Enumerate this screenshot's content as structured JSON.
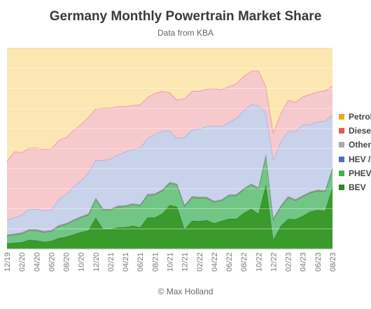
{
  "header": {
    "title": "Germany Monthly Powertrain Market Share",
    "subtitle": "Data from KBA"
  },
  "footer": {
    "credit": "© Max Holland"
  },
  "chart_data": {
    "type": "area",
    "stacked": true,
    "ylim": [
      0,
      100
    ],
    "grid": true,
    "legend_position": "right",
    "x": [
      "12/19",
      "01/20",
      "02/20",
      "03/20",
      "04/20",
      "05/20",
      "06/20",
      "07/20",
      "08/20",
      "09/20",
      "10/20",
      "11/20",
      "12/20",
      "01/21",
      "02/21",
      "03/21",
      "04/21",
      "05/21",
      "06/21",
      "07/21",
      "08/21",
      "09/21",
      "10/21",
      "11/21",
      "12/21",
      "01/22",
      "02/22",
      "03/22",
      "04/22",
      "05/22",
      "06/22",
      "07/22",
      "08/22",
      "09/22",
      "10/22",
      "11/22",
      "12/22",
      "01/23",
      "02/23",
      "03/23",
      "04/23",
      "05/23",
      "06/23",
      "07/23",
      "08/23"
    ],
    "xtick_labels": [
      "12/19",
      "02/20",
      "04/20",
      "06/20",
      "08/20",
      "10/20",
      "12/20",
      "02/21",
      "04/21",
      "06/21",
      "08/21",
      "10/21",
      "12/21",
      "02/22",
      "04/22",
      "06/22",
      "08/22",
      "10/22",
      "12/22",
      "02/23",
      "04/23",
      "06/23",
      "08/23"
    ],
    "series": [
      {
        "name": "BEV",
        "color": "#3a9a2c",
        "values": [
          2.7,
          3.0,
          3.3,
          4.5,
          4.2,
          3.5,
          3.9,
          5.4,
          6.0,
          7.2,
          8.4,
          9.1,
          15.6,
          9.8,
          9.7,
          10.7,
          10.8,
          11.5,
          10.7,
          15.6,
          15.7,
          17.6,
          21.8,
          21.0,
          9.7,
          14.0,
          13.8,
          14.3,
          12.7,
          14.0,
          15.0,
          15.0,
          17.8,
          20.0,
          17.4,
          32.2,
          4.4,
          11.5,
          14.9,
          14.7,
          16.4,
          18.6,
          19.4,
          19.0,
          30.8
        ]
      },
      {
        "name": "PHEV",
        "color": "#72c685",
        "values": [
          3.8,
          4.0,
          4.3,
          4.7,
          4.9,
          4.8,
          4.8,
          5.8,
          6.2,
          6.8,
          7.2,
          7.8,
          9.2,
          9.6,
          9.6,
          10.2,
          10.3,
          10.6,
          10.8,
          11.1,
          11.3,
          11.4,
          10.9,
          10.8,
          11.5,
          11.6,
          11.5,
          11.0,
          10.6,
          10.0,
          11.5,
          11.6,
          11.8,
          11.9,
          12.6,
          14.5,
          10.3,
          9.4,
          10.7,
          9.4,
          9.7,
          9.3,
          9.5,
          9.5,
          9.1
        ]
      },
      {
        "name": "Other",
        "color": "#9e9e9e",
        "values": [
          0.6,
          0.6,
          0.6,
          0.6,
          0.6,
          0.6,
          0.6,
          0.6,
          0.6,
          0.6,
          0.6,
          0.6,
          0.6,
          0.6,
          0.6,
          0.6,
          0.6,
          0.6,
          0.6,
          0.6,
          0.6,
          0.6,
          0.6,
          0.6,
          0.6,
          0.6,
          0.6,
          0.6,
          0.6,
          0.6,
          0.6,
          0.6,
          0.6,
          0.6,
          0.6,
          0.6,
          0.6,
          0.6,
          0.6,
          0.6,
          0.6,
          0.6,
          0.6,
          0.6,
          0.6
        ]
      },
      {
        "name": "HEV /",
        "color": "#c8d2ea",
        "values": [
          7.3,
          8.1,
          8.7,
          10.2,
          10.1,
          10.3,
          10.1,
          12.9,
          14.4,
          16.5,
          17.9,
          20.6,
          18.9,
          24.1,
          25.0,
          25.4,
          26.6,
          26.9,
          28.3,
          27.7,
          29.4,
          29.1,
          25.6,
          22.8,
          33.8,
          33.1,
          33.9,
          35.2,
          37.6,
          36.4,
          36.0,
          37.9,
          38.8,
          39.5,
          40.9,
          20.6,
          29.2,
          32.0,
          32.4,
          34.0,
          35.1,
          33.5,
          33.9,
          34.6,
          26.4
        ]
      },
      {
        "name": "Diesel",
        "color": "#f6c9cc",
        "values": [
          29.5,
          32.8,
          31.2,
          30.3,
          30.6,
          30.6,
          30.7,
          29.5,
          28.5,
          28.0,
          28.0,
          27.6,
          25.6,
          26.2,
          25.5,
          24.1,
          22.7,
          22.1,
          21.5,
          20.6,
          20.6,
          19.9,
          19.0,
          19.1,
          19.4,
          19.3,
          18.8,
          18.6,
          18.6,
          18.4,
          17.9,
          17.4,
          17.0,
          16.6,
          17.4,
          13.1,
          13.6,
          14.1,
          15.6,
          14.5,
          14.1,
          15.1,
          15.0,
          15.2,
          14.3
        ]
      },
      {
        "name": "Petrol",
        "color": "#fce7b2",
        "values": [
          56.1,
          51.5,
          51.9,
          49.7,
          49.6,
          50.2,
          49.9,
          45.8,
          44.3,
          40.9,
          37.9,
          34.3,
          30.1,
          29.7,
          29.6,
          29.0,
          29.0,
          28.3,
          28.1,
          24.4,
          22.4,
          21.4,
          22.1,
          25.7,
          25.0,
          21.4,
          21.4,
          20.3,
          19.9,
          20.6,
          19.0,
          17.5,
          14.0,
          11.4,
          11.1,
          19.0,
          41.9,
          32.4,
          25.8,
          26.8,
          24.1,
          22.9,
          21.6,
          21.1,
          18.8
        ]
      }
    ],
    "legend_order": [
      "Petrol",
      "Diesel",
      "Other",
      "HEV /",
      "PHEV",
      "BEV"
    ],
    "legend_colors": [
      "#f2a81c",
      "#e8595e",
      "#a8a8a8",
      "#4f6cbd",
      "#3fb24e",
      "#2c8a1f"
    ]
  }
}
